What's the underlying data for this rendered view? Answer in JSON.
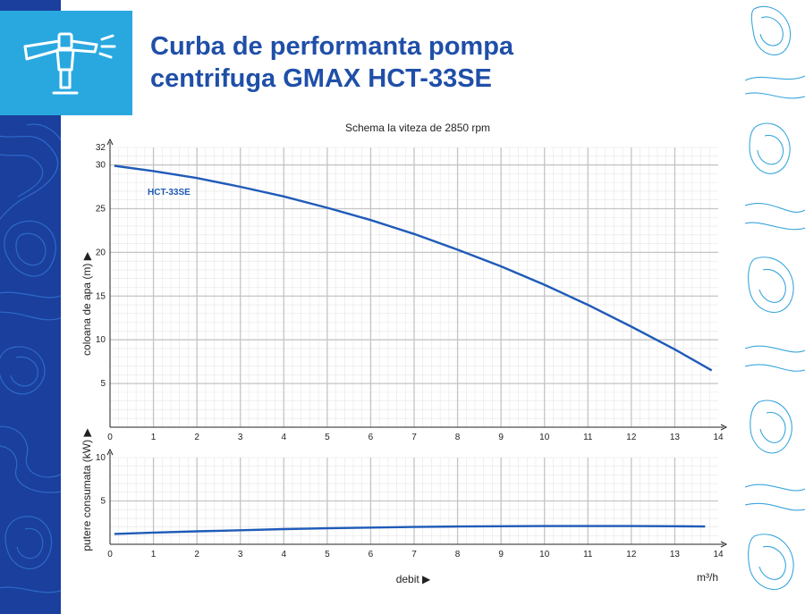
{
  "page": {
    "title_line1": "Curba de performanta pompa",
    "title_line2": "centrifuga GMAX HCT-33SE"
  },
  "logo": {
    "icon": "sprinkler-icon"
  },
  "colors": {
    "title": "#1f4fa8",
    "curve": "#1f5bb8",
    "left_band": "#1b3f9c",
    "logo_box": "#29a8e0",
    "right_pattern": "#3aa6dc"
  },
  "chart_data": [
    {
      "type": "line",
      "title": "Schema la viteza de 2850 rpm",
      "xlabel": "",
      "ylabel": "coloana de apa (m) ▶",
      "xlim": [
        0,
        14
      ],
      "ylim": [
        0,
        32
      ],
      "x_ticks": [
        "0",
        "1",
        "2",
        "3",
        "4",
        "5",
        "6",
        "7",
        "8",
        "9",
        "10",
        "11",
        "12",
        "13",
        "14"
      ],
      "y_ticks": [
        "5",
        "10",
        "15",
        "20",
        "25",
        "30",
        "32"
      ],
      "grid": true,
      "series": [
        {
          "name": "HCT-33SE",
          "x": [
            0.1,
            1,
            2,
            3,
            4,
            5,
            6,
            7,
            8,
            9,
            10,
            11,
            12,
            13,
            13.85
          ],
          "y": [
            29.9,
            29.3,
            28.5,
            27.5,
            26.4,
            25.1,
            23.7,
            22.1,
            20.3,
            18.4,
            16.3,
            14.0,
            11.5,
            8.9,
            6.5
          ]
        }
      ]
    },
    {
      "type": "line",
      "title": "",
      "xlabel": "debit ▶",
      "x_unit": "m³/h",
      "ylabel": "putere consumata (kW) ▶",
      "xlim": [
        0,
        14
      ],
      "ylim": [
        0,
        10
      ],
      "x_ticks": [
        "0",
        "1",
        "2",
        "3",
        "4",
        "5",
        "6",
        "7",
        "8",
        "9",
        "10",
        "11",
        "12",
        "13",
        "14"
      ],
      "y_ticks": [
        "5",
        "10"
      ],
      "grid": true,
      "series": [
        {
          "x": [
            0.1,
            1,
            2,
            3,
            4,
            5,
            6,
            7,
            8,
            9,
            10,
            11,
            12,
            13,
            13.7
          ],
          "y": [
            1.2,
            1.35,
            1.5,
            1.62,
            1.75,
            1.85,
            1.93,
            2.0,
            2.05,
            2.08,
            2.1,
            2.1,
            2.1,
            2.08,
            2.05
          ]
        }
      ]
    }
  ]
}
